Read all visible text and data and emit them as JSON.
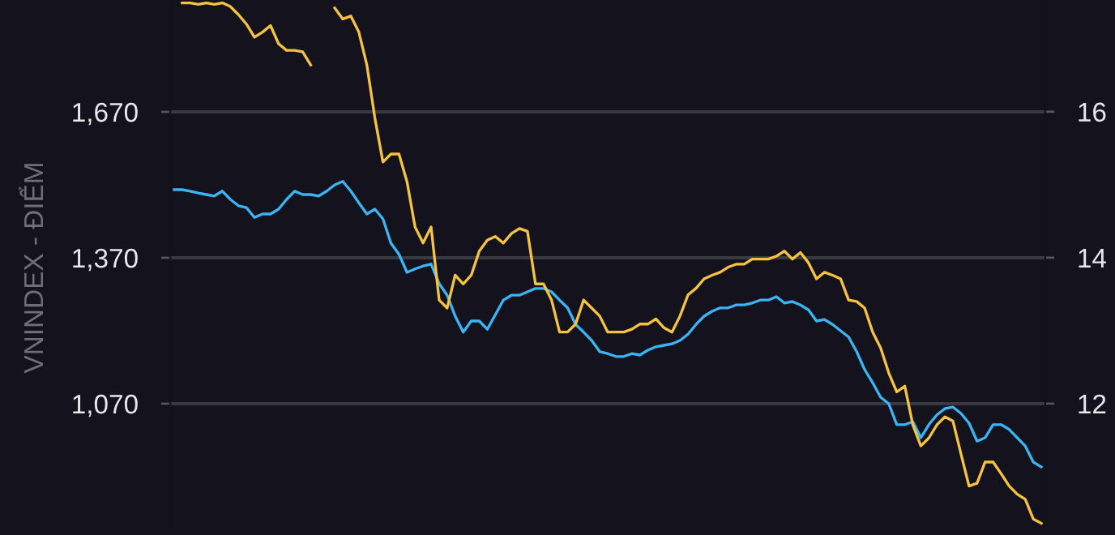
{
  "chart_data": {
    "type": "line",
    "ylabel": "VNINDEX - ĐIỂM",
    "grid": "y",
    "marker": "none",
    "line_style": "solid",
    "categories": [
      null,
      null,
      null,
      null,
      null,
      null,
      null,
      null,
      null,
      null,
      null,
      null,
      null,
      null,
      null,
      null,
      null,
      null,
      null,
      null,
      null,
      null,
      null,
      null,
      null,
      null,
      null,
      null,
      null,
      null,
      null,
      null,
      null,
      null,
      null,
      null,
      null,
      null,
      null,
      null,
      null,
      null,
      null,
      null,
      null,
      null,
      null,
      null,
      null,
      null,
      null,
      null,
      null,
      null,
      null,
      null,
      null,
      null,
      null,
      null,
      null,
      null,
      null,
      null,
      null,
      null,
      null,
      null,
      null,
      null,
      null,
      null,
      null,
      null,
      null,
      null,
      null,
      null,
      null,
      null,
      null,
      null,
      null,
      null,
      null,
      null,
      null,
      null,
      null,
      null,
      null,
      null,
      null,
      null,
      null,
      null,
      null,
      null,
      null,
      null,
      null,
      null,
      null,
      null,
      null,
      null,
      null,
      null,
      null
    ],
    "ylim": [
      800,
      1900
    ],
    "yticks": [
      {
        "value": 1070,
        "label": "1,070"
      },
      {
        "value": 1370,
        "label": "1,370"
      },
      {
        "value": 1670,
        "label": "1,670"
      }
    ],
    "y2lim": [
      10.2,
      17.53
    ],
    "y2ticks": [
      12,
      14,
      16
    ],
    "series": [
      {
        "color": "#3ab4f2",
        "axis": "y",
        "values": [
          1510,
          1510,
          1507,
          1503,
          1500,
          1497,
          1507,
          1490,
          1477,
          1473,
          1453,
          1460,
          1460,
          1470,
          1490,
          1507,
          1500,
          1500,
          1497,
          1507,
          1520,
          1527,
          1507,
          1483,
          1460,
          1470,
          1450,
          1400,
          1377,
          1340,
          1347,
          1353,
          1357,
          1317,
          1293,
          1250,
          1217,
          1240,
          1240,
          1223,
          1253,
          1283,
          1293,
          1293,
          1300,
          1307,
          1307,
          1300,
          1283,
          1267,
          1233,
          1217,
          1200,
          1177,
          1173,
          1167,
          1167,
          1173,
          1170,
          1180,
          1187,
          1190,
          1193,
          1200,
          1213,
          1233,
          1250,
          1260,
          1267,
          1267,
          1273,
          1273,
          1277,
          1283,
          1283,
          1290,
          1277,
          1280,
          1273,
          1263,
          1240,
          1243,
          1233,
          1220,
          1207,
          1177,
          1140,
          1113,
          1083,
          1070,
          1027,
          1027,
          1033,
          1000,
          1027,
          1047,
          1060,
          1063,
          1050,
          1030,
          993,
          1000,
          1027,
          1027,
          1017,
          1000,
          983,
          950,
          940
        ]
      },
      {
        "color": "#f5c242",
        "axis": "y2",
        "values": [
          null,
          17.49,
          17.49,
          17.47,
          17.49,
          17.47,
          17.49,
          17.44,
          17.33,
          17.2,
          17.02,
          17.09,
          17.18,
          16.93,
          16.84,
          16.84,
          16.82,
          16.64,
          null,
          null,
          17.42,
          17.27,
          17.31,
          17.09,
          16.64,
          15.91,
          15.31,
          15.42,
          15.42,
          15.04,
          14.42,
          14.2,
          14.42,
          13.42,
          13.31,
          13.76,
          13.64,
          13.76,
          14.09,
          14.24,
          14.29,
          14.2,
          14.33,
          14.4,
          14.36,
          13.64,
          13.64,
          13.42,
          12.98,
          12.98,
          13.09,
          13.42,
          13.31,
          13.2,
          12.98,
          12.98,
          12.98,
          13.02,
          13.09,
          13.09,
          13.16,
          13.04,
          12.98,
          13.2,
          13.49,
          13.58,
          13.71,
          13.76,
          13.8,
          13.87,
          13.91,
          13.91,
          13.98,
          13.98,
          13.98,
          14.02,
          14.09,
          13.98,
          14.07,
          13.93,
          13.71,
          13.8,
          13.76,
          13.71,
          13.42,
          13.4,
          13.31,
          12.98,
          12.76,
          12.42,
          12.16,
          12.24,
          11.71,
          11.42,
          11.53,
          11.71,
          11.82,
          11.76,
          11.31,
          10.87,
          10.91,
          11.2,
          11.2,
          11.04,
          10.87,
          10.76,
          10.69,
          10.42,
          10.36
        ]
      }
    ]
  }
}
